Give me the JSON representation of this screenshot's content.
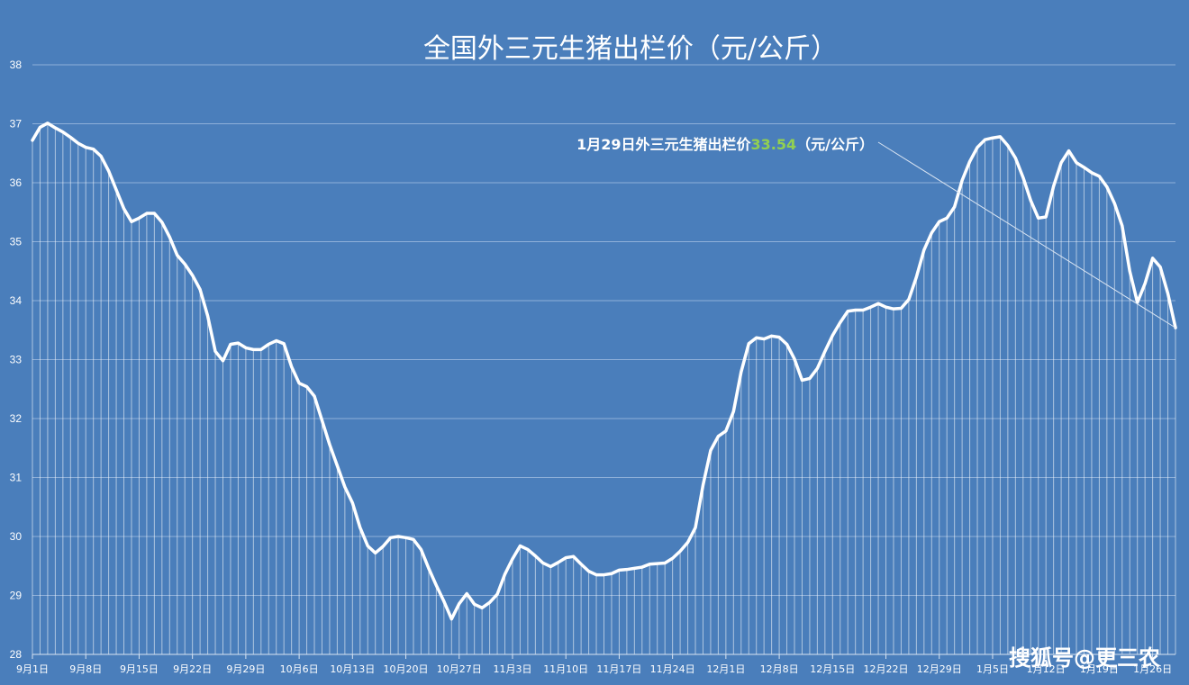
{
  "chart_data": {
    "type": "area",
    "title": "全国外三元生猪出栏价（元/公斤）",
    "ylim": [
      28,
      38
    ],
    "y_ticks": [
      "28",
      "29",
      "30",
      "31",
      "32",
      "33",
      "34",
      "35",
      "36",
      "37",
      "38"
    ],
    "x_tick_labels": [
      "9月1日",
      "9月8日",
      "9月15日",
      "9月22日",
      "9月29日",
      "10月6日",
      "10月13日",
      "10月20日",
      "10月27日",
      "11月3日",
      "11月10日",
      "11月17日",
      "11月24日",
      "12月1日",
      "12月8日",
      "12月15日",
      "12月22日",
      "12月29日",
      "1月5日",
      "1月12日",
      "1月19日",
      "1月26日"
    ],
    "grid": true,
    "series": [
      {
        "values": [
          36.72,
          36.94,
          37.01,
          36.93,
          36.86,
          36.77,
          36.67,
          36.6,
          36.57,
          36.45,
          36.2,
          35.88,
          35.56,
          35.34,
          35.4,
          35.48,
          35.48,
          35.33,
          35.08,
          34.77,
          34.62,
          34.43,
          34.19,
          33.74,
          33.14,
          32.98,
          33.26,
          33.28,
          33.2,
          33.17,
          33.17,
          33.26,
          33.32,
          33.27,
          32.88,
          32.6,
          32.54,
          32.38,
          31.97,
          31.56,
          31.2,
          30.84,
          30.57,
          30.15,
          29.84,
          29.72,
          29.83,
          29.98,
          30.0,
          29.98,
          29.95,
          29.78,
          29.46,
          29.17,
          28.9,
          28.6,
          28.86,
          29.03,
          28.85,
          28.79,
          28.88,
          29.02,
          29.36,
          29.62,
          29.84,
          29.78,
          29.67,
          29.55,
          29.49,
          29.56,
          29.64,
          29.66,
          29.53,
          29.41,
          29.35,
          29.35,
          29.37,
          29.43,
          29.44,
          29.46,
          29.48,
          29.53,
          29.54,
          29.55,
          29.63,
          29.75,
          29.9,
          30.15,
          30.87,
          31.46,
          31.7,
          31.79,
          32.12,
          32.79,
          33.27,
          33.37,
          33.35,
          33.4,
          33.38,
          33.26,
          33.01,
          32.65,
          32.68,
          32.85,
          33.14,
          33.41,
          33.63,
          33.82,
          33.84,
          33.84,
          33.89,
          33.95,
          33.89,
          33.86,
          33.87,
          34.02,
          34.4,
          34.86,
          35.15,
          35.34,
          35.4,
          35.59,
          36.04,
          36.36,
          36.6,
          36.73,
          36.76,
          36.78,
          36.63,
          36.42,
          36.09,
          35.7,
          35.4,
          35.42,
          35.94,
          36.34,
          36.54,
          36.34,
          36.26,
          36.17,
          36.11,
          35.93,
          35.65,
          35.27,
          34.5,
          33.97,
          34.29,
          34.72,
          34.57,
          34.12,
          33.54
        ]
      }
    ],
    "annotation": {
      "prefix": "1月29日外三元生猪出栏价",
      "value": "33.54",
      "suffix": "（元/公斤）"
    }
  },
  "watermark": "搜狐号@更三农",
  "colors": {
    "background": "#4a7ebb",
    "line": "#ffffff",
    "annotation_value": "#92d050"
  }
}
